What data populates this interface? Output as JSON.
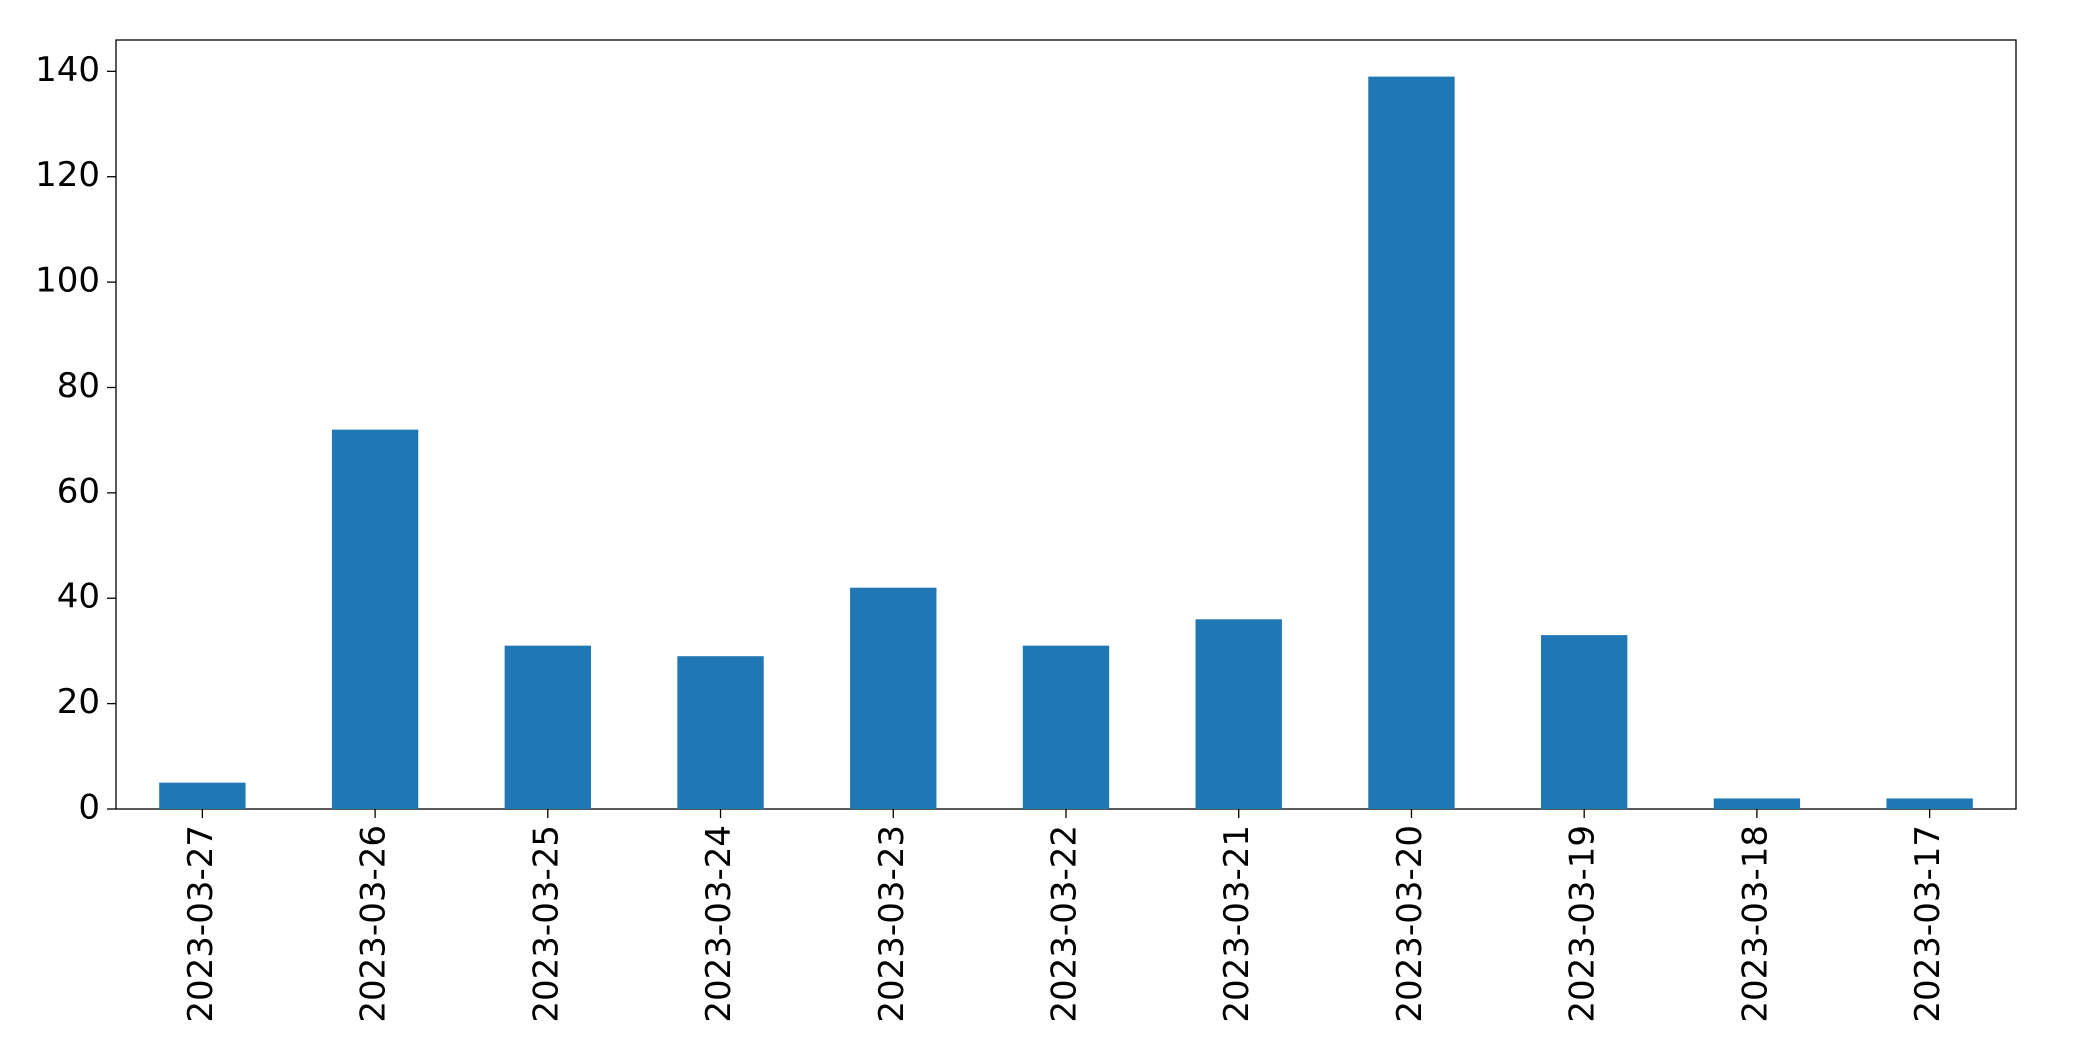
{
  "chart_data": {
    "type": "bar",
    "categories": [
      "2023-03-27",
      "2023-03-26",
      "2023-03-25",
      "2023-03-24",
      "2023-03-23",
      "2023-03-22",
      "2023-03-21",
      "2023-03-20",
      "2023-03-19",
      "2023-03-18",
      "2023-03-17"
    ],
    "values": [
      5,
      72,
      31,
      29,
      42,
      31,
      36,
      139,
      33,
      2,
      2
    ],
    "color": "#1f77b4",
    "ylim": [
      0,
      145.95
    ],
    "yticks": [
      0,
      20,
      40,
      60,
      80,
      100,
      120,
      140
    ],
    "grid": false
  }
}
